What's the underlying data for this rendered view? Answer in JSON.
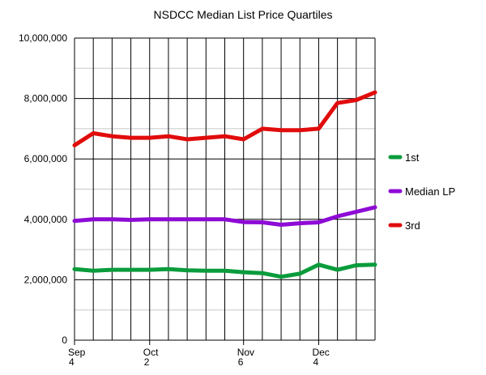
{
  "chart_data": {
    "type": "line",
    "title": "NSDCC Median List Price Quartiles",
    "xlabel": "",
    "ylabel": "",
    "ylim": [
      0,
      10000000
    ],
    "y_ticks": [
      "0",
      "2,000,000",
      "4,000,000",
      "6,000,000",
      "8,000,000",
      "10,000,000"
    ],
    "x_tick_labels": [
      {
        "index": 0,
        "line1": "Sep",
        "line2": "4"
      },
      {
        "index": 4,
        "line1": "Oct",
        "line2": "2"
      },
      {
        "index": 9,
        "line1": "Nov",
        "line2": "6"
      },
      {
        "index": 13,
        "line1": "Dec",
        "line2": "4"
      }
    ],
    "grid": true,
    "legend_position": "right",
    "series": [
      {
        "name": "1st",
        "color": "#0a9c3c",
        "values": [
          2350000,
          2300000,
          2330000,
          2330000,
          2330000,
          2350000,
          2310000,
          2300000,
          2300000,
          2250000,
          2220000,
          2100000,
          2200000,
          2500000,
          2330000,
          2480000,
          2500000
        ]
      },
      {
        "name": "Median LP",
        "color": "#8e0bd6",
        "values": [
          3950000,
          4000000,
          4000000,
          3980000,
          4000000,
          4000000,
          4000000,
          4000000,
          4000000,
          3910000,
          3900000,
          3820000,
          3870000,
          3900000,
          4100000,
          4250000,
          4400000
        ]
      },
      {
        "name": "3rd",
        "color": "#e10c0c",
        "values": [
          6450000,
          6850000,
          6750000,
          6700000,
          6700000,
          6750000,
          6650000,
          6700000,
          6750000,
          6650000,
          7000000,
          6950000,
          6950000,
          7000000,
          7850000,
          7950000,
          8200000
        ]
      }
    ]
  }
}
